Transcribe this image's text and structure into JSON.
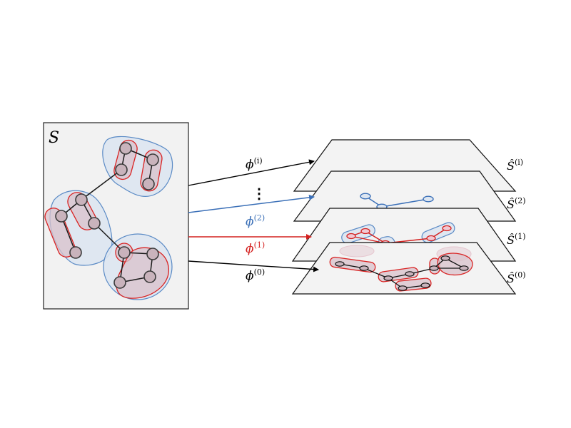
{
  "graph": {
    "label_base": "S"
  },
  "maps": [
    {
      "base": "ϕ",
      "sup": "(i)",
      "color": "#000000"
    },
    {
      "base": "ϕ",
      "sup": "(2)",
      "color": "#3a6fb7"
    },
    {
      "base": "ϕ",
      "sup": "(1)",
      "color": "#d4201f"
    },
    {
      "base": "ϕ",
      "sup": "(0)",
      "color": "#000000"
    }
  ],
  "levels": [
    {
      "base": "Ŝ",
      "sup": "(i)"
    },
    {
      "base": "Ŝ",
      "sup": "(2)"
    },
    {
      "base": "Ŝ",
      "sup": "(1)"
    },
    {
      "base": "Ŝ",
      "sup": "(0)"
    }
  ],
  "ellipsis": "⋮",
  "colors": {
    "blue": "#3a6fb7",
    "red": "#d4201f",
    "blue_fill": "#dde6f1",
    "red_fill": "#d9c2cb",
    "node_fill": "#c9b3bc"
  }
}
